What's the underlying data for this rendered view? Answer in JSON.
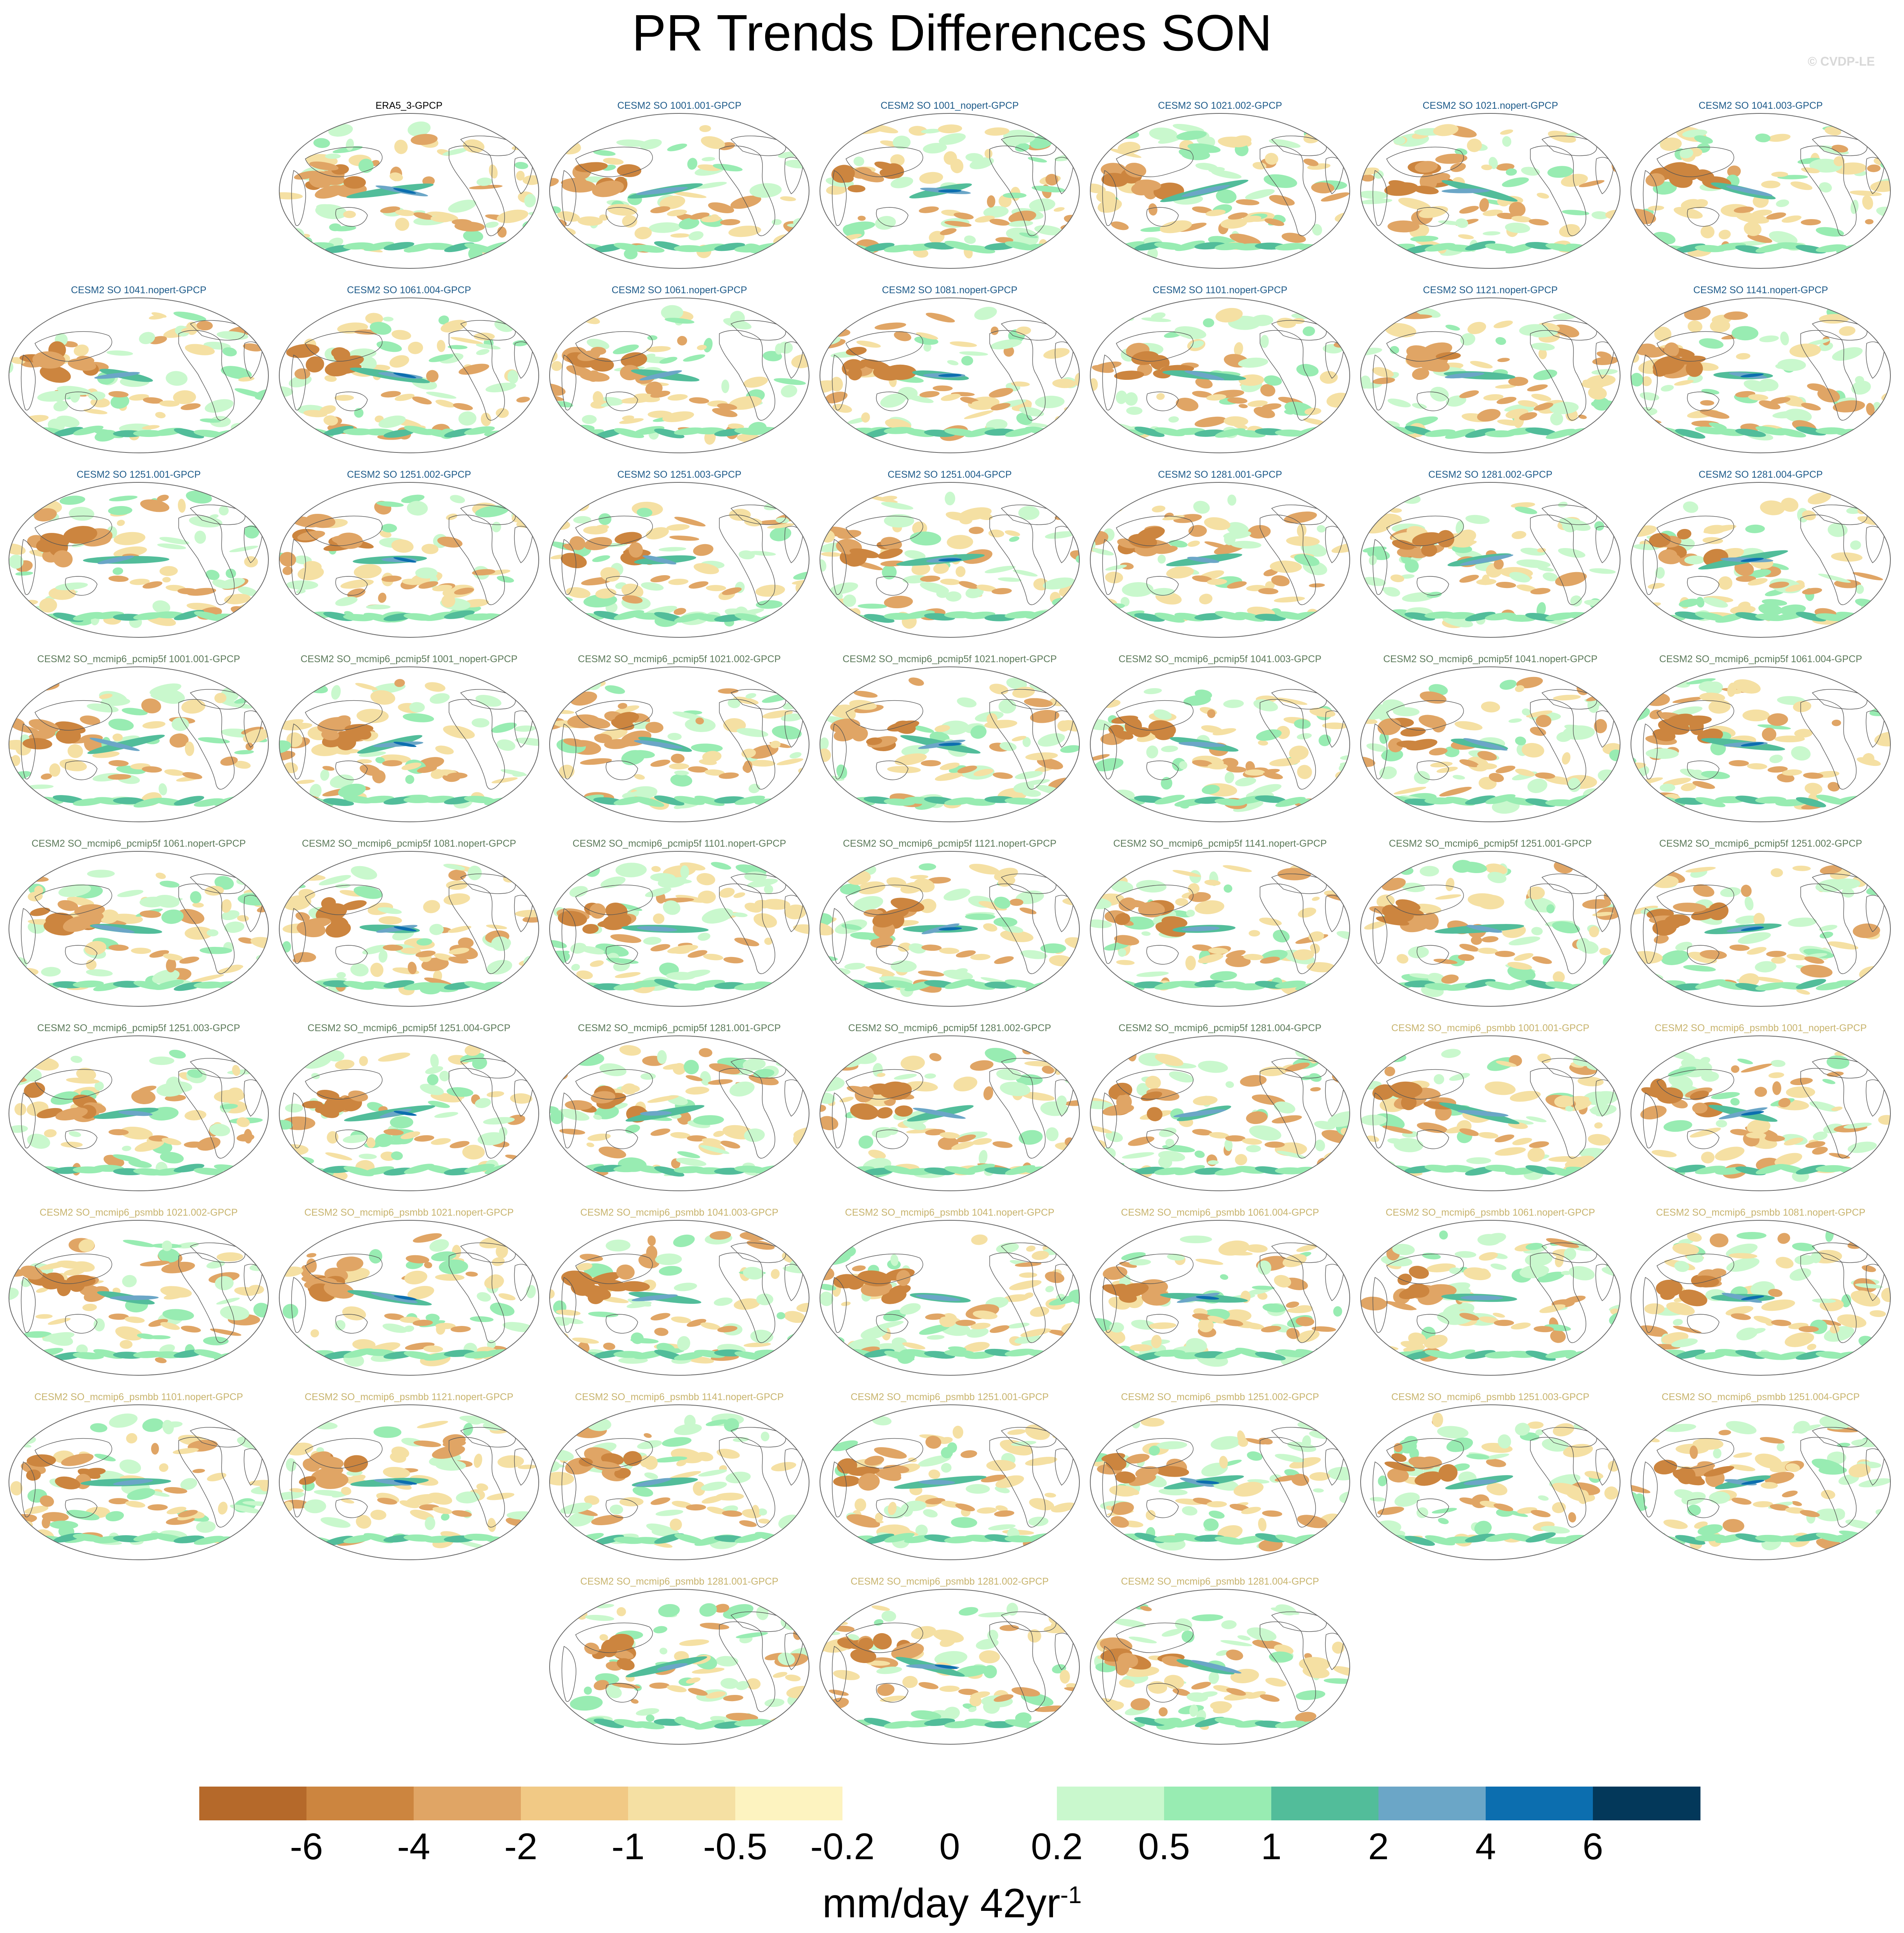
{
  "figure": {
    "title": "PR Trends Differences SON",
    "copyright": "© CVDP-LE",
    "units_base": "mm/day 42yr",
    "units_exponent": "-1"
  },
  "panels": [
    {
      "label": "ERA5_3-GPCP",
      "group": "obs"
    },
    {
      "label": "CESM2 SO 1001.001-GPCP",
      "group": "so"
    },
    {
      "label": "CESM2 SO 1001_nopert-GPCP",
      "group": "so"
    },
    {
      "label": "CESM2 SO 1021.002-GPCP",
      "group": "so"
    },
    {
      "label": "CESM2 SO 1021.nopert-GPCP",
      "group": "so"
    },
    {
      "label": "CESM2 SO 1041.003-GPCP",
      "group": "so"
    },
    {
      "label": "CESM2 SO 1041.nopert-GPCP",
      "group": "so"
    },
    {
      "label": "CESM2 SO 1061.004-GPCP",
      "group": "so"
    },
    {
      "label": "CESM2 SO 1061.nopert-GPCP",
      "group": "so"
    },
    {
      "label": "CESM2 SO 1081.nopert-GPCP",
      "group": "so"
    },
    {
      "label": "CESM2 SO 1101.nopert-GPCP",
      "group": "so"
    },
    {
      "label": "CESM2 SO 1121.nopert-GPCP",
      "group": "so"
    },
    {
      "label": "CESM2 SO 1141.nopert-GPCP",
      "group": "so"
    },
    {
      "label": "CESM2 SO 1251.001-GPCP",
      "group": "so"
    },
    {
      "label": "CESM2 SO 1251.002-GPCP",
      "group": "so"
    },
    {
      "label": "CESM2 SO 1251.003-GPCP",
      "group": "so"
    },
    {
      "label": "CESM2 SO 1251.004-GPCP",
      "group": "so"
    },
    {
      "label": "CESM2 SO 1281.001-GPCP",
      "group": "so"
    },
    {
      "label": "CESM2 SO 1281.002-GPCP",
      "group": "so"
    },
    {
      "label": "CESM2 SO 1281.004-GPCP",
      "group": "so"
    },
    {
      "label": "CESM2 SO_mcmip6_pcmip5f 1001.001-GPCP",
      "group": "pcmip"
    },
    {
      "label": "CESM2 SO_mcmip6_pcmip5f 1001_nopert-GPCP",
      "group": "pcmip"
    },
    {
      "label": "CESM2 SO_mcmip6_pcmip5f 1021.002-GPCP",
      "group": "pcmip"
    },
    {
      "label": "CESM2 SO_mcmip6_pcmip5f 1021.nopert-GPCP",
      "group": "pcmip"
    },
    {
      "label": "CESM2 SO_mcmip6_pcmip5f 1041.003-GPCP",
      "group": "pcmip"
    },
    {
      "label": "CESM2 SO_mcmip6_pcmip5f 1041.nopert-GPCP",
      "group": "pcmip"
    },
    {
      "label": "CESM2 SO_mcmip6_pcmip5f 1061.004-GPCP",
      "group": "pcmip"
    },
    {
      "label": "CESM2 SO_mcmip6_pcmip5f 1061.nopert-GPCP",
      "group": "pcmip"
    },
    {
      "label": "CESM2 SO_mcmip6_pcmip5f 1081.nopert-GPCP",
      "group": "pcmip"
    },
    {
      "label": "CESM2 SO_mcmip6_pcmip5f 1101.nopert-GPCP",
      "group": "pcmip"
    },
    {
      "label": "CESM2 SO_mcmip6_pcmip5f 1121.nopert-GPCP",
      "group": "pcmip"
    },
    {
      "label": "CESM2 SO_mcmip6_pcmip5f 1141.nopert-GPCP",
      "group": "pcmip"
    },
    {
      "label": "CESM2 SO_mcmip6_pcmip5f 1251.001-GPCP",
      "group": "pcmip"
    },
    {
      "label": "CESM2 SO_mcmip6_pcmip5f 1251.002-GPCP",
      "group": "pcmip"
    },
    {
      "label": "CESM2 SO_mcmip6_pcmip5f 1251.003-GPCP",
      "group": "pcmip"
    },
    {
      "label": "CESM2 SO_mcmip6_pcmip5f 1251.004-GPCP",
      "group": "pcmip"
    },
    {
      "label": "CESM2 SO_mcmip6_pcmip5f 1281.001-GPCP",
      "group": "pcmip"
    },
    {
      "label": "CESM2 SO_mcmip6_pcmip5f 1281.002-GPCP",
      "group": "pcmip"
    },
    {
      "label": "CESM2 SO_mcmip6_pcmip5f 1281.004-GPCP",
      "group": "pcmip"
    },
    {
      "label": "CESM2 SO_mcmip6_psmbb 1001.001-GPCP",
      "group": "psmbb"
    },
    {
      "label": "CESM2 SO_mcmip6_psmbb 1001_nopert-GPCP",
      "group": "psmbb"
    },
    {
      "label": "CESM2 SO_mcmip6_psmbb 1021.002-GPCP",
      "group": "psmbb"
    },
    {
      "label": "CESM2 SO_mcmip6_psmbb 1021.nopert-GPCP",
      "group": "psmbb"
    },
    {
      "label": "CESM2 SO_mcmip6_psmbb 1041.003-GPCP",
      "group": "psmbb"
    },
    {
      "label": "CESM2 SO_mcmip6_psmbb 1041.nopert-GPCP",
      "group": "psmbb"
    },
    {
      "label": "CESM2 SO_mcmip6_psmbb 1061.004-GPCP",
      "group": "psmbb"
    },
    {
      "label": "CESM2 SO_mcmip6_psmbb 1061.nopert-GPCP",
      "group": "psmbb"
    },
    {
      "label": "CESM2 SO_mcmip6_psmbb 1081.nopert-GPCP",
      "group": "psmbb"
    },
    {
      "label": "CESM2 SO_mcmip6_psmbb 1101.nopert-GPCP",
      "group": "psmbb"
    },
    {
      "label": "CESM2 SO_mcmip6_psmbb 1121.nopert-GPCP",
      "group": "psmbb"
    },
    {
      "label": "CESM2 SO_mcmip6_psmbb 1141.nopert-GPCP",
      "group": "psmbb"
    },
    {
      "label": "CESM2 SO_mcmip6_psmbb 1251.001-GPCP",
      "group": "psmbb"
    },
    {
      "label": "CESM2 SO_mcmip6_psmbb 1251.002-GPCP",
      "group": "psmbb"
    },
    {
      "label": "CESM2 SO_mcmip6_psmbb 1251.003-GPCP",
      "group": "psmbb"
    },
    {
      "label": "CESM2 SO_mcmip6_psmbb 1251.004-GPCP",
      "group": "psmbb"
    },
    {
      "label": "CESM2 SO_mcmip6_psmbb 1281.001-GPCP",
      "group": "psmbb"
    },
    {
      "label": "CESM2 SO_mcmip6_psmbb 1281.002-GPCP",
      "group": "psmbb"
    },
    {
      "label": "CESM2 SO_mcmip6_psmbb 1281.004-GPCP",
      "group": "psmbb"
    }
  ],
  "colorbar": {
    "colors": [
      "#b5692a",
      "#cc853f",
      "#e0a565",
      "#f1c985",
      "#f5e0a3",
      "#fdf3c0",
      "#ffffff",
      "#ffffff",
      "#c9f8cd",
      "#98ecb2",
      "#52bd9a",
      "#6ba6c7",
      "#0c6eaf",
      "#03385a"
    ],
    "ticks": [
      "-6",
      "-4",
      "-2",
      "-1",
      "-0.5",
      "-0.2",
      "0",
      "0.2",
      "0.5",
      "1",
      "2",
      "4",
      "6"
    ]
  },
  "map_palette": {
    "neg_strong": "#cc853f",
    "neg_mid": "#e0a565",
    "neg_weak": "#f5e0a3",
    "pos_weak": "#c9f8cd",
    "pos_mid": "#98ecb2",
    "pos_strong": "#52bd9a",
    "pos_blue": "#6ba6c7",
    "pos_dark": "#0c6eaf",
    "coast": "#555555"
  }
}
